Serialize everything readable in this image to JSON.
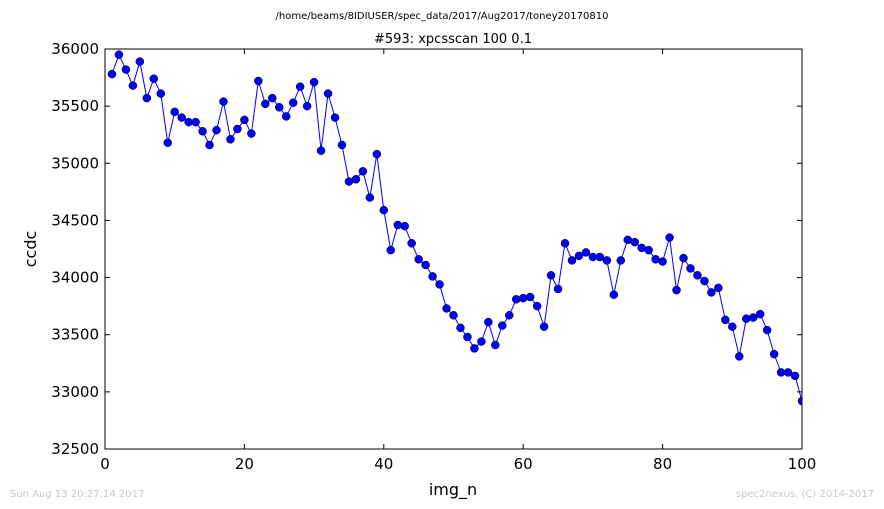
{
  "figure": {
    "suptitle": "/home/beams/8IDIUSER/spec_data/2017/Aug2017/toney20170810",
    "footer_left": "Sun Aug 13 20:27:14 2017",
    "footer_right": "spec2nexus, (C) 2014-2017"
  },
  "chart_data": {
    "type": "line",
    "title": "#593: xpcsscan 100 0.1",
    "xlabel": "img_n",
    "ylabel": "ccdc",
    "xlim": [
      0,
      100
    ],
    "ylim": [
      32500,
      36000
    ],
    "xticks": [
      0,
      20,
      40,
      60,
      80,
      100
    ],
    "yticks": [
      32500,
      33000,
      33500,
      34000,
      34500,
      35000,
      35500,
      36000
    ],
    "grid": false,
    "line_color": "#0000ff",
    "marker": "circle",
    "x": [
      1,
      2,
      3,
      4,
      5,
      6,
      7,
      8,
      9,
      10,
      11,
      12,
      13,
      14,
      15,
      16,
      17,
      18,
      19,
      20,
      21,
      22,
      23,
      24,
      25,
      26,
      27,
      28,
      29,
      30,
      31,
      32,
      33,
      34,
      35,
      36,
      37,
      38,
      39,
      40,
      41,
      42,
      43,
      44,
      45,
      46,
      47,
      48,
      49,
      50,
      51,
      52,
      53,
      54,
      55,
      56,
      57,
      58,
      59,
      60,
      61,
      62,
      63,
      64,
      65,
      66,
      67,
      68,
      69,
      70,
      71,
      72,
      73,
      74,
      75,
      76,
      77,
      78,
      79,
      80,
      81,
      82,
      83,
      84,
      85,
      86,
      87,
      88,
      89,
      90,
      91,
      92,
      93,
      94,
      95,
      96,
      97,
      98,
      99,
      100
    ],
    "y": [
      35780,
      35950,
      35820,
      35680,
      35890,
      35570,
      35740,
      35610,
      35180,
      35450,
      35400,
      35360,
      35360,
      35280,
      35160,
      35290,
      35540,
      35210,
      35300,
      35380,
      35260,
      35720,
      35520,
      35570,
      35490,
      35410,
      35530,
      35670,
      35500,
      35710,
      35110,
      35610,
      35400,
      35160,
      34840,
      34860,
      34930,
      34700,
      35080,
      34590,
      34240,
      34460,
      34450,
      34300,
      34160,
      34110,
      34010,
      33940,
      33730,
      33670,
      33560,
      33480,
      33380,
      33440,
      33610,
      33410,
      33580,
      33670,
      33810,
      33820,
      33830,
      33750,
      33570,
      34020,
      33900,
      34300,
      34150,
      34190,
      34220,
      34180,
      34180,
      34150,
      33850,
      34150,
      34330,
      34310,
      34260,
      34240,
      34160,
      34140,
      34350,
      33890,
      34170,
      34080,
      34020,
      33970,
      33870,
      33910,
      33630,
      33570,
      33310,
      33640,
      33650,
      33680,
      33540,
      33330,
      33170,
      33170,
      33140,
      32920
    ]
  }
}
